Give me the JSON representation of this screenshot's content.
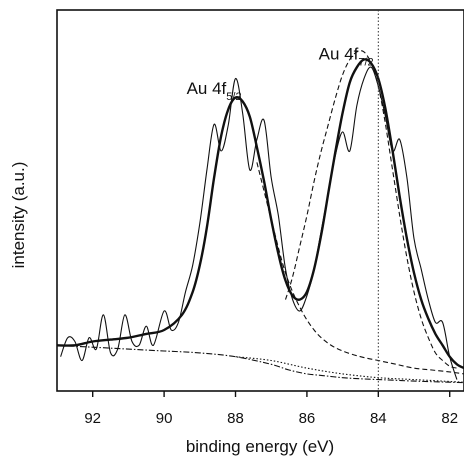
{
  "chart_data": {
    "type": "line",
    "xlabel": "binding energy (eV)",
    "ylabel": "intensity  (a.u.)",
    "x_reversed": true,
    "xlim": [
      93.0,
      81.6
    ],
    "ylim": [
      0,
      100
    ],
    "x_ticks": [
      92,
      90,
      88,
      86,
      84,
      82
    ],
    "x_tick_labels": [
      "92",
      "90",
      "88",
      "86",
      "84",
      "82"
    ],
    "grid": false,
    "reference_line_x": 84.0,
    "annotations": [
      {
        "main": "Au 4f",
        "sub": "5/2",
        "x": 88.6,
        "y": 78
      },
      {
        "main": "Au 4f",
        "sub": "7/2",
        "x": 84.9,
        "y": 87
      }
    ],
    "series": [
      {
        "style": "raw-noisy",
        "points": [
          [
            92.9,
            9
          ],
          [
            92.7,
            14
          ],
          [
            92.5,
            13
          ],
          [
            92.3,
            8
          ],
          [
            92.1,
            14
          ],
          [
            91.9,
            11
          ],
          [
            91.7,
            20
          ],
          [
            91.5,
            10
          ],
          [
            91.3,
            11
          ],
          [
            91.1,
            20
          ],
          [
            90.9,
            13
          ],
          [
            90.7,
            12
          ],
          [
            90.5,
            17
          ],
          [
            90.3,
            12
          ],
          [
            90.0,
            21
          ],
          [
            89.8,
            16
          ],
          [
            89.6,
            18
          ],
          [
            89.4,
            26
          ],
          [
            89.2,
            33
          ],
          [
            89.0,
            44
          ],
          [
            88.8,
            58
          ],
          [
            88.6,
            70
          ],
          [
            88.4,
            63
          ],
          [
            88.2,
            70
          ],
          [
            88.0,
            82
          ],
          [
            87.8,
            73
          ],
          [
            87.6,
            58
          ],
          [
            87.4,
            66
          ],
          [
            87.2,
            71
          ],
          [
            87.0,
            56
          ],
          [
            86.8,
            46
          ],
          [
            86.6,
            32
          ],
          [
            86.4,
            24
          ],
          [
            86.2,
            21
          ],
          [
            86.0,
            25
          ],
          [
            85.8,
            32
          ],
          [
            85.6,
            42
          ],
          [
            85.4,
            52
          ],
          [
            85.2,
            62
          ],
          [
            85.0,
            68
          ],
          [
            84.8,
            63
          ],
          [
            84.6,
            75
          ],
          [
            84.4,
            82
          ],
          [
            84.2,
            85
          ],
          [
            84.0,
            80
          ],
          [
            83.8,
            72
          ],
          [
            83.6,
            63
          ],
          [
            83.4,
            66
          ],
          [
            83.2,
            56
          ],
          [
            83.0,
            40
          ],
          [
            82.8,
            32
          ],
          [
            82.6,
            24
          ],
          [
            82.4,
            18
          ],
          [
            82.2,
            18
          ],
          [
            82.0,
            9
          ],
          [
            81.8,
            3
          ]
        ]
      },
      {
        "style": "fit-total",
        "points": [
          [
            93.0,
            12
          ],
          [
            92.5,
            12
          ],
          [
            92.0,
            13
          ],
          [
            91.5,
            13.5
          ],
          [
            91.0,
            14
          ],
          [
            90.5,
            15
          ],
          [
            90.0,
            16
          ],
          [
            89.5,
            20
          ],
          [
            89.2,
            26
          ],
          [
            89.0,
            33
          ],
          [
            88.8,
            43
          ],
          [
            88.6,
            56
          ],
          [
            88.4,
            67
          ],
          [
            88.2,
            74
          ],
          [
            88.0,
            77
          ],
          [
            87.8,
            76
          ],
          [
            87.6,
            72
          ],
          [
            87.4,
            64
          ],
          [
            87.2,
            55
          ],
          [
            87.0,
            45
          ],
          [
            86.8,
            36
          ],
          [
            86.6,
            29
          ],
          [
            86.4,
            25
          ],
          [
            86.2,
            24
          ],
          [
            86.0,
            26
          ],
          [
            85.8,
            32
          ],
          [
            85.6,
            41
          ],
          [
            85.4,
            52
          ],
          [
            85.2,
            63
          ],
          [
            85.0,
            73
          ],
          [
            84.8,
            81
          ],
          [
            84.6,
            85
          ],
          [
            84.4,
            87
          ],
          [
            84.2,
            86
          ],
          [
            84.0,
            82
          ],
          [
            83.8,
            74
          ],
          [
            83.6,
            63
          ],
          [
            83.4,
            51
          ],
          [
            83.2,
            40
          ],
          [
            83.0,
            31
          ],
          [
            82.8,
            24
          ],
          [
            82.6,
            19
          ],
          [
            82.4,
            15
          ],
          [
            82.2,
            12
          ],
          [
            82.0,
            9
          ],
          [
            81.8,
            7
          ],
          [
            81.6,
            6
          ]
        ]
      },
      {
        "style": "fit-component-dashed",
        "points": [
          [
            87.4,
            60
          ],
          [
            87.0,
            45
          ],
          [
            86.6,
            31
          ],
          [
            86.2,
            22
          ],
          [
            85.8,
            16
          ],
          [
            85.4,
            12.5
          ],
          [
            85.0,
            10.5
          ],
          [
            84.5,
            9
          ],
          [
            84.0,
            8
          ],
          [
            83.5,
            7
          ],
          [
            83.0,
            6
          ],
          [
            82.5,
            5.5
          ],
          [
            82.0,
            5
          ],
          [
            81.6,
            4.5
          ]
        ]
      },
      {
        "style": "fit-component-dashed",
        "points": [
          [
            86.6,
            24
          ],
          [
            86.4,
            30
          ],
          [
            86.2,
            38
          ],
          [
            86.0,
            46
          ],
          [
            85.8,
            55
          ],
          [
            85.6,
            63
          ],
          [
            85.4,
            70
          ],
          [
            85.2,
            77
          ],
          [
            85.0,
            83
          ],
          [
            84.8,
            87
          ],
          [
            84.6,
            89
          ],
          [
            84.4,
            89
          ],
          [
            84.2,
            86
          ],
          [
            84.0,
            80
          ],
          [
            83.8,
            70
          ],
          [
            83.6,
            58
          ],
          [
            83.4,
            46
          ],
          [
            83.2,
            35
          ],
          [
            83.0,
            26
          ],
          [
            82.8,
            19
          ],
          [
            82.6,
            14
          ],
          [
            82.4,
            10
          ],
          [
            82.2,
            8
          ],
          [
            82.0,
            6.5
          ],
          [
            81.8,
            6
          ]
        ]
      },
      {
        "style": "background-dashdot",
        "points": [
          [
            93.0,
            12
          ],
          [
            92.0,
            11.5
          ],
          [
            91.0,
            11
          ],
          [
            90.0,
            10.5
          ],
          [
            89.0,
            10
          ],
          [
            88.0,
            9
          ],
          [
            87.0,
            7
          ],
          [
            86.5,
            5.5
          ],
          [
            86.0,
            4.5
          ],
          [
            85.5,
            4
          ],
          [
            85.0,
            3.5
          ],
          [
            84.5,
            3.2
          ],
          [
            84.0,
            3
          ],
          [
            83.5,
            2.8
          ],
          [
            83.0,
            2.6
          ],
          [
            82.0,
            2.3
          ],
          [
            81.6,
            2.2
          ]
        ]
      },
      {
        "style": "background-dotted",
        "points": [
          [
            88.0,
            9
          ],
          [
            87.0,
            8
          ],
          [
            86.0,
            6
          ],
          [
            85.0,
            4.5
          ],
          [
            84.0,
            3.5
          ],
          [
            83.0,
            3
          ],
          [
            82.0,
            2.5
          ],
          [
            81.6,
            2.3
          ]
        ]
      }
    ]
  }
}
